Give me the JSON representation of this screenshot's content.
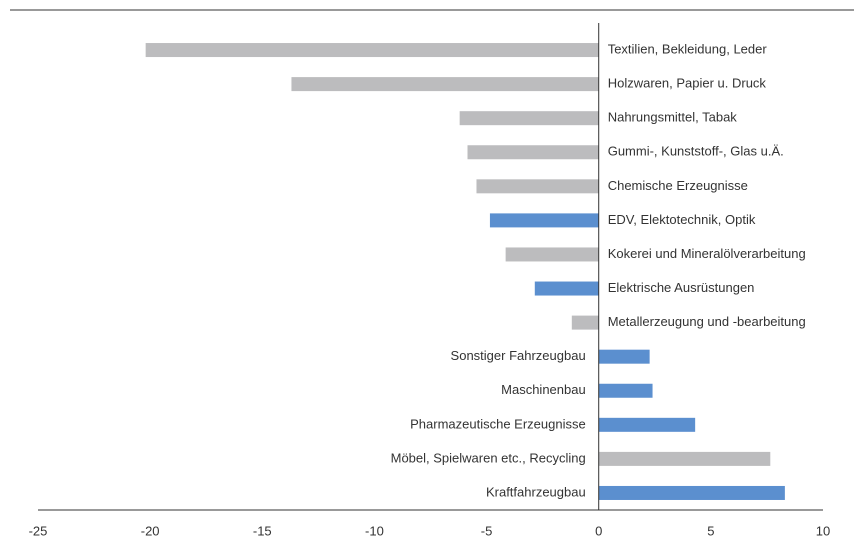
{
  "chart_data": {
    "type": "bar",
    "orientation": "horizontal",
    "categories": [
      "Textilien, Bekleidung, Leder",
      "Holzwaren, Papier u. Druck",
      "Nahrungsmittel, Tabak",
      "Gummi-, Kunststoff-, Glas u.Ä.",
      "Chemische Erzeugnisse",
      "EDV, Elektotechnik, Optik",
      "Kokerei und Mineralölverarbeitung",
      "Elektrische Ausrüstungen",
      "Metallerzeugung und -bearbeitung",
      "Sonstiger Fahrzeugbau",
      "Maschinenbau",
      "Pharmazeutische Erzeugnisse",
      "Möbel, Spielwaren etc., Recycling",
      "Kraftfahrzeugbau"
    ],
    "values": [
      -20.2,
      -13.7,
      -6.2,
      -5.85,
      -5.45,
      -4.85,
      -4.15,
      -2.85,
      -1.2,
      2.27,
      2.4,
      4.3,
      7.65,
      8.3
    ],
    "colors": [
      "#bcbcbe",
      "#bcbcbe",
      "#bcbcbe",
      "#bcbcbe",
      "#bcbcbe",
      "#5b8fcf",
      "#bcbcbe",
      "#5b8fcf",
      "#bcbcbe",
      "#5b8fcf",
      "#5b8fcf",
      "#5b8fcf",
      "#bcbcbe",
      "#5b8fcf"
    ],
    "xlim": [
      -25,
      10
    ],
    "xticks": [
      -25,
      -20,
      -15,
      -10,
      -5,
      0,
      5,
      10
    ]
  }
}
